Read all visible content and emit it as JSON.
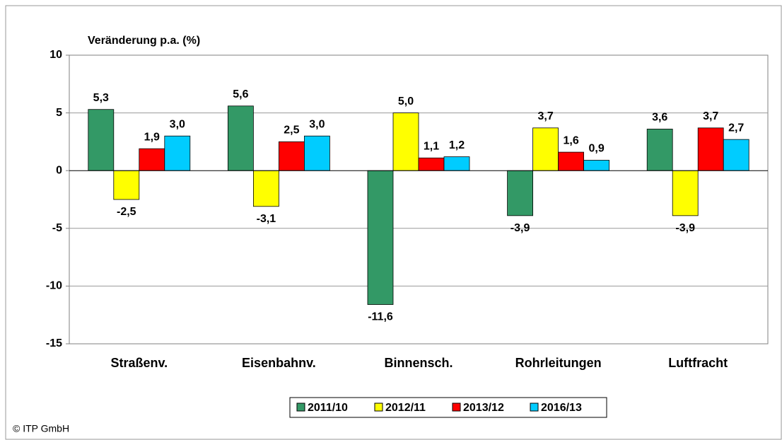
{
  "chart_data": {
    "type": "bar",
    "ylabel": "Veränderung p.a. (%)",
    "categories": [
      "Straßenv.",
      "Eisenbahnv.",
      "Binnensch.",
      "Rohrleitungen",
      "Luftfracht"
    ],
    "series": [
      {
        "name": "2011/10",
        "color": "#339966",
        "values": [
          5.3,
          5.6,
          -11.6,
          -3.9,
          3.6
        ],
        "value_labels": [
          "5,3",
          "5,6",
          "-11,6",
          "-3,9",
          "3,6"
        ]
      },
      {
        "name": "2012/11",
        "color": "#ffff00",
        "values": [
          -2.5,
          -3.1,
          5.0,
          3.7,
          -3.9
        ],
        "value_labels": [
          "-2,5",
          "-3,1",
          "5,0",
          "3,7",
          "-3,9"
        ]
      },
      {
        "name": "2013/12",
        "color": "#ff0000",
        "values": [
          1.9,
          2.5,
          1.1,
          1.6,
          3.7
        ],
        "value_labels": [
          "1,9",
          "2,5",
          "1,1",
          "1,6",
          "3,7"
        ]
      },
      {
        "name": "2016/13",
        "color": "#00ccff",
        "values": [
          3.0,
          3.0,
          1.2,
          0.9,
          2.7
        ],
        "value_labels": [
          "3,0",
          "3,0",
          "1,2",
          "0,9",
          "2,7"
        ]
      }
    ],
    "ylim": [
      -15,
      10
    ],
    "yticks": [
      -15,
      -10,
      -5,
      0,
      5,
      10
    ],
    "grid": true,
    "legend": "bottom",
    "footer": "© ITP GmbH"
  }
}
